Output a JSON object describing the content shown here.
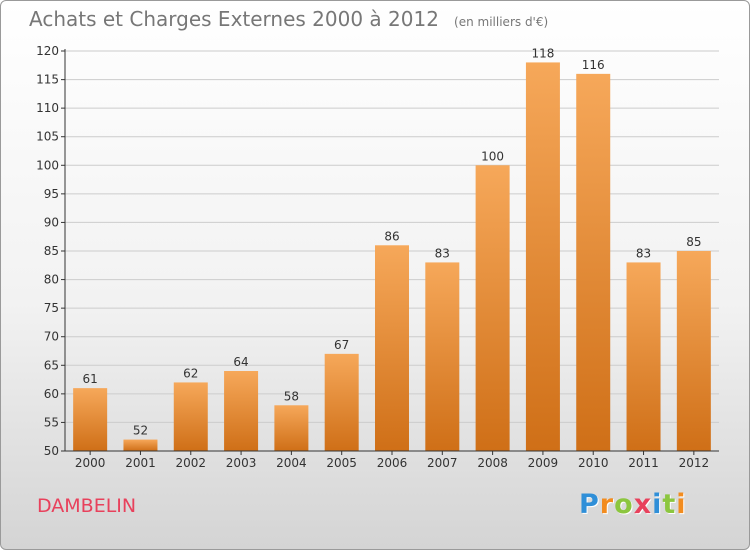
{
  "title": "Achats et Charges Externes 2000 à 2012",
  "subtitle": "(en milliers d'€)",
  "commune": "DAMBELIN",
  "logo": {
    "text": "Proxiti",
    "letters": [
      {
        "ch": "P",
        "color": "#2f8fd8"
      },
      {
        "ch": "r",
        "color": "#f28c1f"
      },
      {
        "ch": "o",
        "color": "#8cc63f"
      },
      {
        "ch": "x",
        "color": "#e8415c"
      },
      {
        "ch": "i",
        "color": "#2f8fd8"
      },
      {
        "ch": "t",
        "color": "#8cc63f"
      },
      {
        "ch": "i",
        "color": "#f28c1f"
      }
    ]
  },
  "colors": {
    "bar_light": "#f6a85a",
    "bar_dark": "#cf6f17",
    "axis": "#333333",
    "grid": "#cccccc",
    "commune_text": "#e8415c",
    "title_text": "#777777"
  },
  "chart_data": {
    "type": "bar",
    "title": "Achats et Charges Externes 2000 à 2012",
    "subtitle": "(en milliers d'€)",
    "categories": [
      "2000",
      "2001",
      "2002",
      "2003",
      "2004",
      "2005",
      "2006",
      "2007",
      "2008",
      "2009",
      "2010",
      "2011",
      "2012"
    ],
    "values": [
      61,
      52,
      62,
      64,
      58,
      67,
      86,
      83,
      100,
      118,
      116,
      83,
      85
    ],
    "data_labels": [
      "61",
      "52",
      "62",
      "64",
      "58",
      "67",
      "86",
      "83",
      "100",
      "118",
      "116",
      "83",
      "85"
    ],
    "ylim": [
      50,
      120
    ],
    "yticks": [
      50,
      55,
      60,
      65,
      70,
      75,
      80,
      85,
      90,
      95,
      100,
      105,
      110,
      115,
      120
    ],
    "grid": true,
    "legend": "none"
  }
}
